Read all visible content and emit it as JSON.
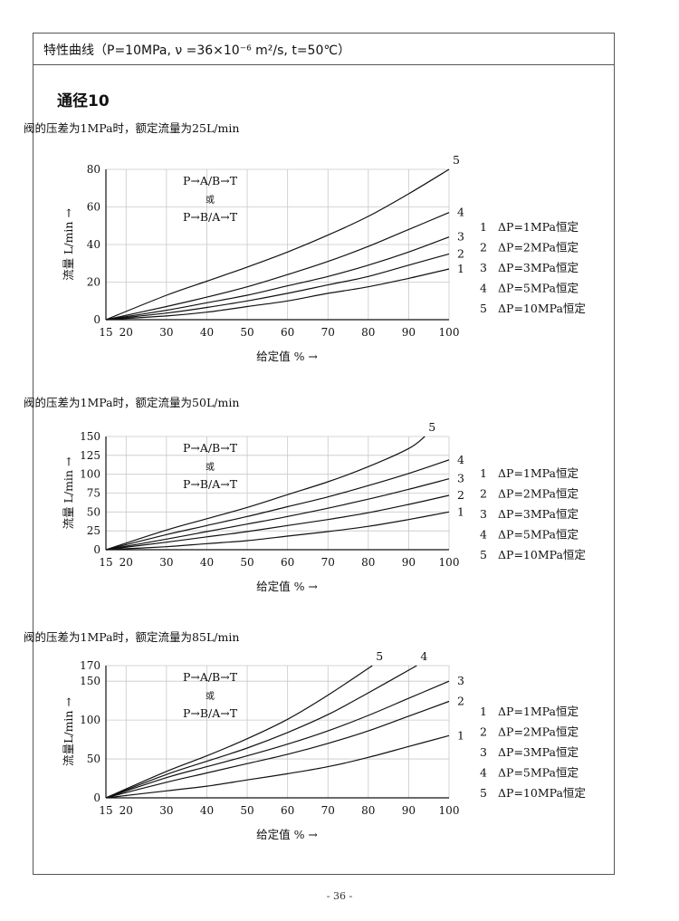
{
  "header": {
    "title": "特性曲线（P=10MPa, ν =36×10⁻⁶ m²/s, t=50℃）"
  },
  "section": {
    "title": "通径10"
  },
  "page_number": "- 36 -",
  "chart_data": [
    {
      "type": "line",
      "subtitle": "阀的压差为1MPa时，额定流量为25L/min",
      "xlabel": "给定值 % →",
      "ylabel": "流量 L/min →",
      "xlim": [
        15,
        100
      ],
      "ylim": [
        0,
        80
      ],
      "x_ticks": [
        15,
        20,
        30,
        40,
        50,
        60,
        70,
        80,
        90,
        100
      ],
      "y_ticks": [
        0,
        20,
        40,
        60,
        80
      ],
      "grid": true,
      "annotation": [
        "P→A/B→T",
        "或",
        "P→B/A→T"
      ],
      "series": [
        {
          "name": "1",
          "x": [
            15,
            30,
            40,
            50,
            60,
            70,
            80,
            90,
            100
          ],
          "values": [
            0,
            2,
            4,
            7,
            10,
            14,
            17.5,
            22,
            27
          ]
        },
        {
          "name": "2",
          "x": [
            15,
            30,
            40,
            50,
            60,
            70,
            80,
            90,
            100
          ],
          "values": [
            0,
            3.5,
            6.5,
            10,
            14,
            18.5,
            23,
            29,
            35
          ]
        },
        {
          "name": "3",
          "x": [
            15,
            30,
            40,
            50,
            60,
            70,
            80,
            90,
            100
          ],
          "values": [
            0,
            5,
            9,
            13,
            18,
            23,
            29,
            36,
            44
          ]
        },
        {
          "name": "4",
          "x": [
            15,
            30,
            40,
            50,
            60,
            70,
            80,
            90,
            100
          ],
          "values": [
            0,
            7,
            12,
            17.5,
            24,
            31,
            39,
            48,
            57
          ]
        },
        {
          "name": "5",
          "x": [
            15,
            30,
            40,
            50,
            60,
            70,
            80,
            90,
            100
          ],
          "values": [
            0,
            13,
            20.5,
            28,
            36,
            45,
            55,
            67,
            80
          ]
        }
      ],
      "legend": [
        {
          "num": "1",
          "label": "ΔP=1MPa恒定"
        },
        {
          "num": "2",
          "label": "ΔP=2MPa恒定"
        },
        {
          "num": "3",
          "label": "ΔP=3MPa恒定"
        },
        {
          "num": "4",
          "label": "ΔP=5MPa恒定"
        },
        {
          "num": "5",
          "label": "ΔP=10MPa恒定"
        }
      ],
      "legend_position": "right"
    },
    {
      "type": "line",
      "subtitle": "阀的压差为1MPa时，额定流量为50L/min",
      "xlabel": "给定值 % →",
      "ylabel": "流量 L/min →",
      "xlim": [
        15,
        100
      ],
      "ylim": [
        0,
        150
      ],
      "x_ticks": [
        15,
        20,
        30,
        40,
        50,
        60,
        70,
        80,
        90,
        100
      ],
      "y_ticks": [
        0,
        25,
        50,
        75,
        100,
        125,
        150
      ],
      "grid": true,
      "annotation": [
        "P→A/B→T",
        "或",
        "P→B/A→T"
      ],
      "series": [
        {
          "name": "1",
          "x": [
            15,
            30,
            40,
            50,
            60,
            70,
            80,
            90,
            100
          ],
          "values": [
            0,
            4,
            8,
            12,
            18,
            24,
            31,
            40,
            50
          ]
        },
        {
          "name": "2",
          "x": [
            15,
            30,
            40,
            50,
            60,
            70,
            80,
            90,
            100
          ],
          "values": [
            0,
            10,
            17,
            24,
            32,
            40,
            49,
            60,
            72
          ]
        },
        {
          "name": "3",
          "x": [
            15,
            30,
            40,
            50,
            60,
            70,
            80,
            90,
            100
          ],
          "values": [
            0,
            14,
            24,
            34,
            44,
            55,
            67,
            80,
            94
          ]
        },
        {
          "name": "4",
          "x": [
            15,
            30,
            40,
            50,
            60,
            70,
            80,
            90,
            100
          ],
          "values": [
            0,
            20,
            32,
            44,
            57,
            70,
            85,
            101,
            119
          ]
        },
        {
          "name": "5",
          "x": [
            15,
            30,
            40,
            50,
            60,
            70,
            80,
            90,
            94
          ],
          "values": [
            0,
            26,
            41,
            56,
            73,
            90,
            110,
            134,
            150
          ]
        }
      ],
      "legend": [
        {
          "num": "1",
          "label": "ΔP=1MPa恒定"
        },
        {
          "num": "2",
          "label": "ΔP=2MPa恒定"
        },
        {
          "num": "3",
          "label": "ΔP=3MPa恒定"
        },
        {
          "num": "4",
          "label": "ΔP=5MPa恒定"
        },
        {
          "num": "5",
          "label": "ΔP=10MPa恒定"
        }
      ],
      "legend_position": "right"
    },
    {
      "type": "line",
      "subtitle": "阀的压差为1MPa时，额定流量为85L/min",
      "xlabel": "给定值 % →",
      "ylabel": "流量L/min →",
      "xlim": [
        15,
        100
      ],
      "ylim": [
        0,
        170
      ],
      "x_ticks": [
        15,
        20,
        30,
        40,
        50,
        60,
        70,
        80,
        90,
        100
      ],
      "y_ticks": [
        0,
        50,
        100,
        150,
        170
      ],
      "grid": true,
      "annotation": [
        "P→A/B→T",
        "或",
        "P→B/A→T"
      ],
      "series": [
        {
          "name": "1",
          "x": [
            15,
            30,
            40,
            50,
            60,
            70,
            80,
            90,
            100
          ],
          "values": [
            0,
            9,
            15,
            23,
            31,
            40,
            52,
            66,
            80
          ]
        },
        {
          "name": "2",
          "x": [
            15,
            30,
            40,
            50,
            60,
            70,
            80,
            90,
            100
          ],
          "values": [
            0,
            20,
            32,
            44,
            56,
            70,
            86,
            105,
            124
          ]
        },
        {
          "name": "3",
          "x": [
            15,
            30,
            40,
            50,
            60,
            70,
            80,
            90,
            100
          ],
          "values": [
            0,
            26,
            40,
            54,
            69,
            86,
            106,
            128,
            150
          ]
        },
        {
          "name": "4",
          "x": [
            15,
            30,
            40,
            50,
            60,
            70,
            80,
            92
          ],
          "values": [
            0,
            30,
            47,
            64,
            84,
            107,
            135,
            170
          ]
        },
        {
          "name": "5",
          "x": [
            15,
            30,
            40,
            50,
            60,
            70,
            81
          ],
          "values": [
            0,
            34,
            54,
            76,
            101,
            132,
            170
          ]
        }
      ],
      "legend": [
        {
          "num": "1",
          "label": "ΔP=1MPa恒定"
        },
        {
          "num": "2",
          "label": "ΔP=2MPa恒定"
        },
        {
          "num": "3",
          "label": "ΔP=3MPa恒定"
        },
        {
          "num": "4",
          "label": "ΔP=5MPa恒定"
        },
        {
          "num": "5",
          "label": "ΔP=10MPa恒定"
        }
      ],
      "legend_position": "right"
    }
  ]
}
